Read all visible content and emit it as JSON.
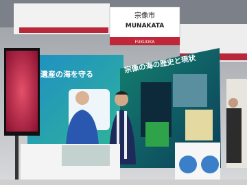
{
  "sign": {
    "city_kanji": "宗像市",
    "city_romaji": "MUNAKATA",
    "prefecture": "FUKUOKA"
  },
  "banners": [
    {
      "text": "界遺産の海を守る"
    },
    {
      "text": "宗像の海の歴史と現状"
    }
  ]
}
